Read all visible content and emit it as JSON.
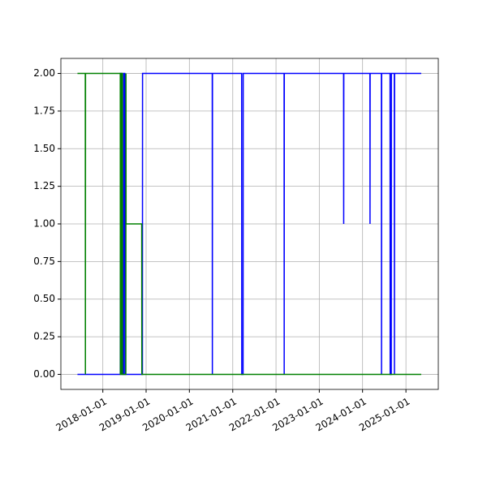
{
  "chart_data": {
    "type": "line",
    "xlim": [
      "2017-01-12",
      "2025-10-01"
    ],
    "xticks": [
      "2018-01-01",
      "2019-01-01",
      "2020-01-01",
      "2021-01-01",
      "2022-01-01",
      "2023-01-01",
      "2024-01-01",
      "2025-01-01"
    ],
    "ylim": [
      -0.1,
      2.1
    ],
    "yticks": [
      {
        "value": 0,
        "label": "0.00"
      },
      {
        "value": 0.25,
        "label": "0.25"
      },
      {
        "value": 0.5,
        "label": "0.50"
      },
      {
        "value": 0.75,
        "label": "0.75"
      },
      {
        "value": 1,
        "label": "1.00"
      },
      {
        "value": 1.25,
        "label": "1.25"
      },
      {
        "value": 1.5,
        "label": "1.50"
      },
      {
        "value": 1.75,
        "label": "1.75"
      },
      {
        "value": 2,
        "label": "2.00"
      }
    ],
    "grid": true,
    "series": [
      {
        "color": "#0000ff",
        "x": [
          "2017-06-01",
          "2018-05-28",
          "2018-05-29",
          "2018-06-10",
          "2018-06-11",
          "2018-06-25",
          "2018-06-26",
          "2018-07-05",
          "2018-07-06",
          "2018-12-01",
          "2018-12-02",
          "2020-07-12",
          "2020-07-13",
          "2020-07-14",
          "2021-03-17",
          "2021-03-18",
          "2021-03-29",
          "2021-03-30",
          "2022-03-10",
          "2022-03-11",
          "2022-03-12",
          "2023-07-25",
          "2023-07-26",
          "2023-07-27",
          "2024-03-03",
          "2024-03-04",
          "2024-03-05",
          "2024-06-08",
          "2024-06-09",
          "2024-06-10",
          "2024-08-20",
          "2024-08-21",
          "2024-08-30",
          "2024-08-31",
          "2024-09-25",
          "2024-09-26",
          "2024-09-27",
          "2025-05-10"
        ],
        "values": [
          0,
          0,
          2,
          2,
          0,
          0,
          2,
          2,
          0,
          0,
          2,
          2,
          0,
          2,
          2,
          0,
          0,
          2,
          2,
          0,
          2,
          2,
          1,
          2,
          2,
          1,
          2,
          2,
          0,
          2,
          2,
          0,
          0,
          2,
          2,
          0,
          2,
          2
        ]
      },
      {
        "color": "#008000",
        "x": [
          "2017-06-01",
          "2017-08-06",
          "2017-08-07",
          "2017-08-08",
          "2018-05-28",
          "2018-05-29",
          "2018-06-05",
          "2018-06-06",
          "2018-06-15",
          "2018-06-16",
          "2018-07-14",
          "2018-07-15",
          "2018-07-16",
          "2018-11-25",
          "2018-11-26",
          "2025-05-10"
        ],
        "values": [
          2,
          2,
          0,
          2,
          2,
          0,
          0,
          2,
          2,
          0,
          0,
          2,
          1,
          1,
          0,
          0
        ]
      }
    ]
  }
}
